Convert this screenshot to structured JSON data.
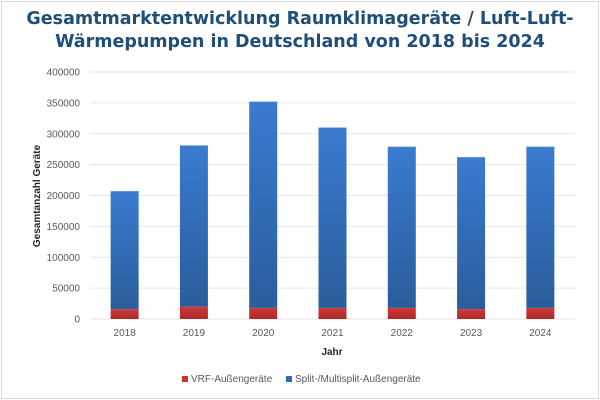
{
  "chart_data": {
    "type": "bar",
    "stacked": true,
    "title": "Gesamtmarktentwicklung Raumklimageräte / Luft-Luft-Wärmepumpen in Deutschland von 2018 bis 2024",
    "title_lines": [
      "Gesamtmarktentwicklung Raumklimageräte / Luft-Luft-",
      "Wärmepumpen in Deutschland von 2018 bis 2024"
    ],
    "xlabel": "Jahr",
    "ylabel": "Gesamtanzahl Geräte",
    "ylim": [
      0,
      400000
    ],
    "yticks": [
      "0",
      "50000",
      "100000",
      "150000",
      "200000",
      "250000",
      "300000",
      "350000",
      "400000"
    ],
    "grid": true,
    "legend": "bottom",
    "categories": [
      "2018",
      "2019",
      "2020",
      "2021",
      "2022",
      "2023",
      "2024"
    ],
    "series": [
      {
        "name": "VRF-Außengeräte",
        "color": "#c0392b",
        "values": [
          16000,
          20000,
          18000,
          18000,
          18000,
          16000,
          18000
        ]
      },
      {
        "name": "Split-/Multisplit-Außengeräte",
        "color": "#2e6db4",
        "values": [
          191000,
          261000,
          334000,
          292000,
          261000,
          246000,
          261000
        ]
      }
    ]
  }
}
